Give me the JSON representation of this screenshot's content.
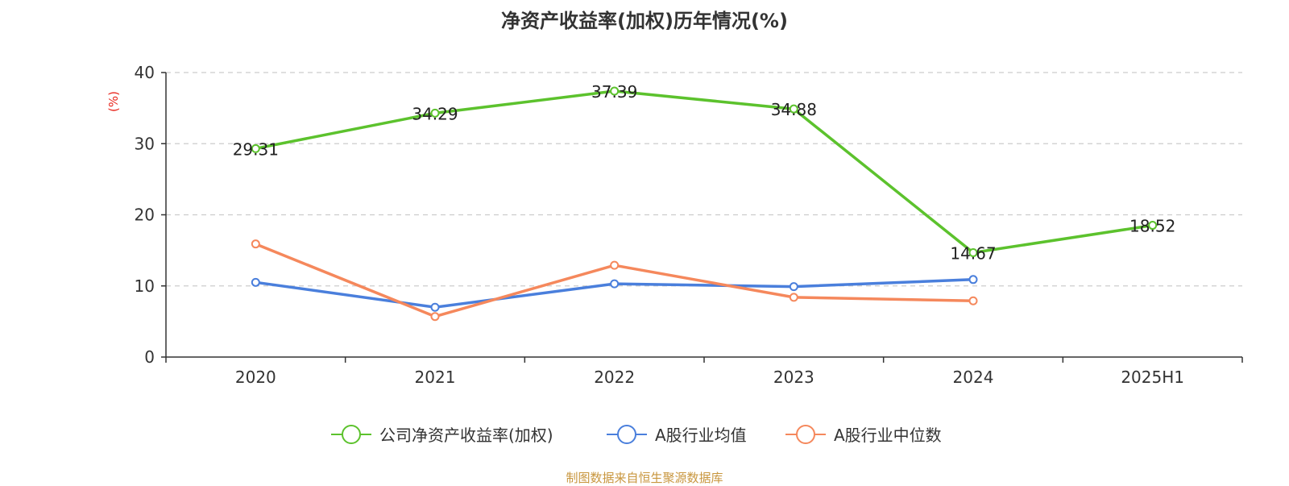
{
  "chart_data": {
    "type": "line",
    "title": "净资产收益率(加权)历年情况(%)",
    "ylabel": "(%)",
    "categories": [
      "2020",
      "2021",
      "2022",
      "2023",
      "2024",
      "2025H1"
    ],
    "ylim": [
      0,
      40
    ],
    "yticks": [
      0,
      10,
      20,
      30,
      40
    ],
    "grid": true,
    "legend_position": "bottom",
    "series": [
      {
        "name": "公司净资产收益率(加权)",
        "color": "#5cc22d",
        "values": [
          29.31,
          34.29,
          37.39,
          34.88,
          14.67,
          18.52
        ],
        "labels": [
          "29.31",
          "34.29",
          "37.39",
          "34.88",
          "14.67",
          "18.52"
        ]
      },
      {
        "name": "A股行业均值",
        "color": "#4a7fdc",
        "values": [
          10.5,
          7.0,
          10.3,
          9.9,
          10.9,
          null
        ]
      },
      {
        "name": "A股行业中位数",
        "color": "#f5885c",
        "values": [
          15.9,
          5.7,
          12.9,
          8.4,
          7.9,
          null
        ]
      }
    ]
  },
  "footer": {
    "source": "制图数据来自恒生聚源数据库"
  }
}
